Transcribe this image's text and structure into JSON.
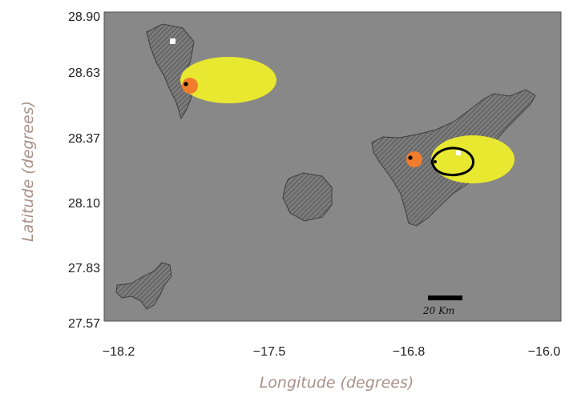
{
  "map": {
    "x_axis": {
      "label": "Longitude (degrees)",
      "ticks": [
        "−18.2",
        "−17.5",
        "−16.8",
        "−16.0"
      ],
      "range": [
        -18.2,
        -16.0
      ]
    },
    "y_axis": {
      "label": "Latitude (degrees)",
      "ticks": [
        "28.90",
        "28.63",
        "28.37",
        "28.10",
        "27.83",
        "27.57"
      ],
      "range": [
        27.57,
        28.9
      ]
    },
    "scale_bar": {
      "label": "20 Km"
    },
    "features": [
      {
        "island": "La Palma",
        "source_lon": -17.86,
        "source_lat": 28.6,
        "ellipse_east_extent_deg": 0.36
      },
      {
        "island": "Tenerife",
        "source_lon": -16.79,
        "source_lat": 28.27,
        "ellipse_east_extent_deg": 0.4
      }
    ],
    "colors": {
      "sea": "#888888",
      "land": "#666666",
      "ellipse": "#e8e830",
      "source_dot": "#f07c2c",
      "contour": "#000000"
    }
  }
}
